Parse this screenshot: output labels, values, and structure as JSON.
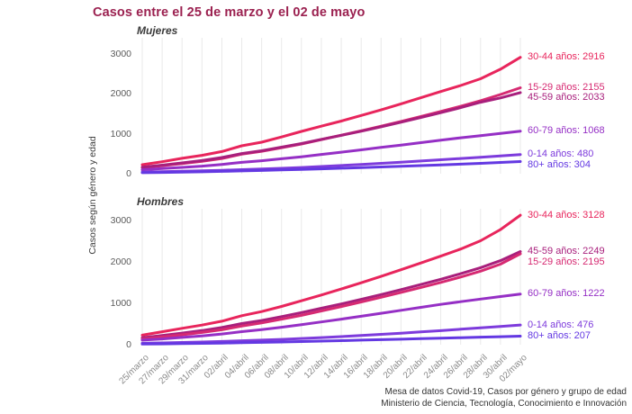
{
  "title": "Casos entre el 25 de marzo y el 02 de mayo",
  "y_axis_label": "Casos según género y edad",
  "footer": {
    "line1": "Mesa de datos Covid-19, Casos por género y grupo de edad",
    "line2": "Ministerio de Ciencia, Tecnología, Conocimiento e Innovación"
  },
  "colors": {
    "title": "#9b2150",
    "grid": "#e9e9e9",
    "age_30_44": "#e8255c",
    "age_15_29": "#d62a72",
    "age_45_59": "#a81f7c",
    "age_60_79": "#952fc5",
    "age_0_14": "#7d3bdc",
    "age_80_plus": "#6338e2"
  },
  "chart_data": [
    {
      "type": "line",
      "panel": "Mujeres",
      "x": [
        "25/marzo",
        "27/marzo",
        "29/marzo",
        "31/marzo",
        "02/abril",
        "04/abril",
        "06/abril",
        "08/abril",
        "10/abril",
        "12/abril",
        "14/abril",
        "16/abril",
        "18/abril",
        "20/abril",
        "22/abril",
        "24/abril",
        "26/abril",
        "28/abril",
        "30/abril",
        "02/mayo"
      ],
      "ylabel": "Casos según género y edad",
      "ylim": [
        0,
        3200
      ],
      "yticks": [
        0,
        1000,
        2000,
        3000
      ],
      "grid": "vertical",
      "legend_position": "right-end-labels",
      "series": [
        {
          "name": "30-44 años",
          "label": "30-44 años: 2916",
          "color": "#e8255c",
          "values": [
            225,
            300,
            385,
            460,
            555,
            700,
            790,
            920,
            1060,
            1190,
            1320,
            1460,
            1600,
            1750,
            1905,
            2060,
            2210,
            2380,
            2620,
            2916
          ]
        },
        {
          "name": "15-29 años",
          "label": "15-29 años: 2155",
          "color": "#d62a72",
          "values": [
            150,
            200,
            255,
            310,
            380,
            490,
            560,
            650,
            745,
            855,
            965,
            1075,
            1190,
            1310,
            1435,
            1560,
            1690,
            1830,
            1985,
            2155
          ]
        },
        {
          "name": "45-59 años",
          "label": "45-59 años: 2033",
          "color": "#a81f7c",
          "values": [
            165,
            215,
            270,
            330,
            405,
            505,
            575,
            665,
            755,
            860,
            960,
            1065,
            1175,
            1290,
            1410,
            1530,
            1655,
            1790,
            1900,
            2033
          ]
        },
        {
          "name": "60-79 años",
          "label": "60-79 años: 1068",
          "color": "#952fc5",
          "values": [
            100,
            128,
            158,
            190,
            232,
            285,
            325,
            375,
            425,
            482,
            540,
            598,
            658,
            718,
            778,
            840,
            900,
            955,
            1010,
            1068
          ]
        },
        {
          "name": "0-14 años",
          "label": "0-14 años: 480",
          "color": "#7d3bdc",
          "values": [
            40,
            50,
            61,
            72,
            86,
            102,
            117,
            136,
            156,
            180,
            205,
            231,
            259,
            288,
            318,
            349,
            381,
            413,
            446,
            480
          ]
        },
        {
          "name": "80+ años",
          "label": "80+ años: 304",
          "color": "#6338e2",
          "values": [
            25,
            32,
            40,
            48,
            58,
            70,
            82,
            95,
            108,
            122,
            137,
            153,
            169,
            186,
            203,
            221,
            240,
            260,
            281,
            304
          ]
        }
      ]
    },
    {
      "type": "line",
      "panel": "Hombres",
      "x": [
        "25/marzo",
        "27/marzo",
        "29/marzo",
        "31/marzo",
        "02/abril",
        "04/abril",
        "06/abril",
        "08/abril",
        "10/abril",
        "12/abril",
        "14/abril",
        "16/abril",
        "18/abril",
        "20/abril",
        "22/abril",
        "24/abril",
        "26/abril",
        "28/abril",
        "30/abril",
        "02/mayo"
      ],
      "ylabel": "Casos según género y edad",
      "ylim": [
        0,
        3200
      ],
      "yticks": [
        0,
        1000,
        2000,
        3000
      ],
      "grid": "vertical",
      "legend_position": "right-end-labels",
      "series": [
        {
          "name": "30-44 años",
          "label": "30-44 años: 3128",
          "color": "#e8255c",
          "values": [
            230,
            312,
            395,
            475,
            568,
            700,
            800,
            925,
            1060,
            1200,
            1345,
            1495,
            1650,
            1810,
            1975,
            2140,
            2310,
            2510,
            2780,
            3128
          ]
        },
        {
          "name": "45-59 años",
          "label": "45-59 años: 2249",
          "color": "#a81f7c",
          "values": [
            170,
            222,
            280,
            342,
            415,
            510,
            585,
            678,
            775,
            880,
            985,
            1095,
            1210,
            1330,
            1455,
            1580,
            1715,
            1860,
            2030,
            2249
          ]
        },
        {
          "name": "15-29 años",
          "label": "15-29 años: 2195",
          "color": "#d62a72",
          "values": [
            140,
            188,
            240,
            295,
            360,
            450,
            525,
            615,
            708,
            815,
            922,
            1032,
            1145,
            1262,
            1382,
            1505,
            1635,
            1775,
            1945,
            2195
          ]
        },
        {
          "name": "60-79 años",
          "label": "60-79 años: 1222",
          "color": "#952fc5",
          "values": [
            110,
            140,
            175,
            212,
            258,
            315,
            362,
            422,
            483,
            550,
            618,
            688,
            758,
            830,
            902,
            975,
            1040,
            1102,
            1162,
            1222
          ]
        },
        {
          "name": "0-14 años",
          "label": "0-14 años: 476",
          "color": "#7d3bdc",
          "values": [
            35,
            44,
            54,
            65,
            79,
            95,
            110,
            129,
            149,
            172,
            196,
            222,
            250,
            279,
            309,
            340,
            373,
            406,
            440,
            476
          ]
        },
        {
          "name": "80+ años",
          "label": "80+ años: 207",
          "color": "#6338e2",
          "values": [
            15,
            20,
            26,
            32,
            40,
            48,
            57,
            66,
            76,
            87,
            98,
            110,
            121,
            133,
            145,
            157,
            170,
            182,
            194,
            207
          ]
        }
      ]
    }
  ]
}
